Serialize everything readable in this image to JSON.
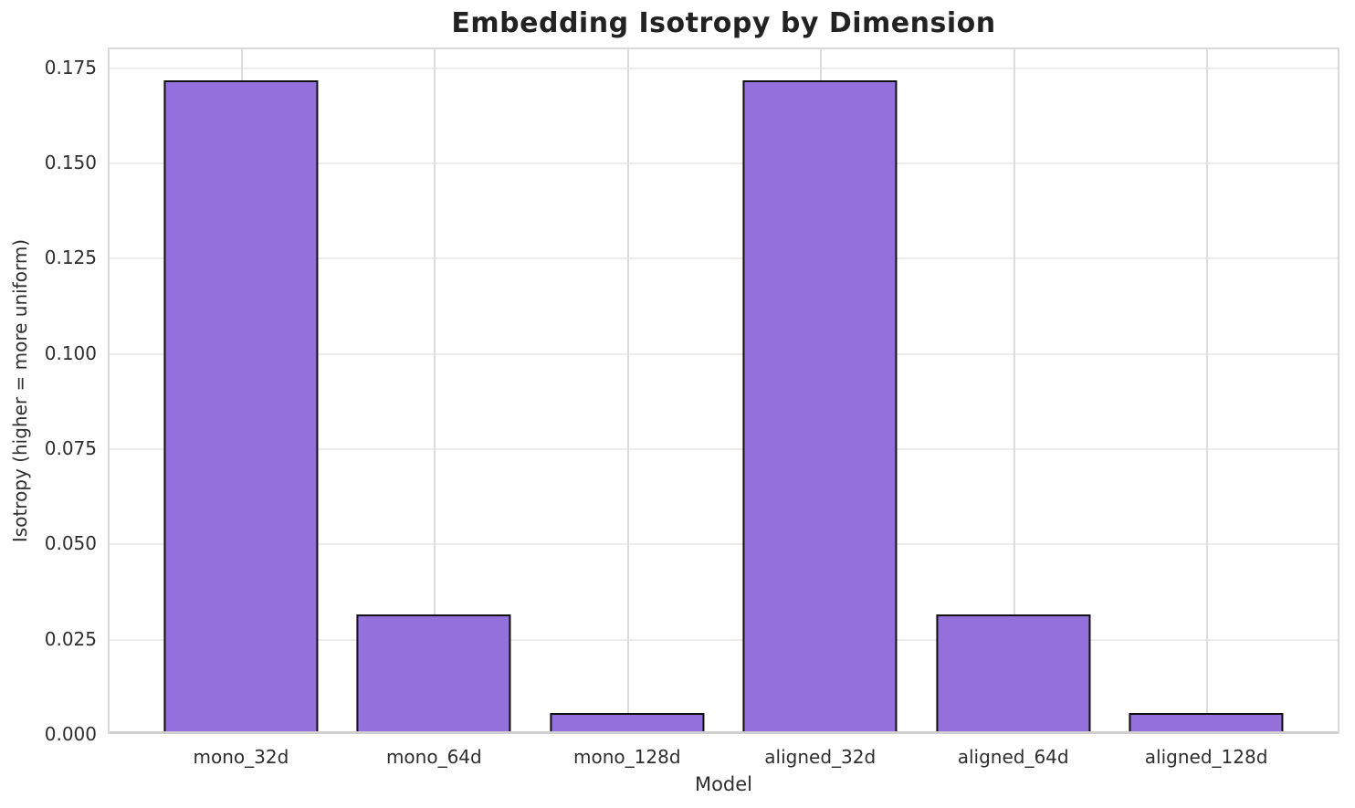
{
  "chart_data": {
    "type": "bar",
    "title": "Embedding Isotropy by Dimension",
    "xlabel": "Model",
    "ylabel": "Isotropy (higher = more uniform)",
    "categories": [
      "mono_32d",
      "mono_64d",
      "mono_128d",
      "aligned_32d",
      "aligned_64d",
      "aligned_128d"
    ],
    "values": [
      0.1716,
      0.0313,
      0.0054,
      0.1716,
      0.0313,
      0.0054
    ],
    "ytick_values": [
      0.0,
      0.025,
      0.05,
      0.075,
      0.1,
      0.125,
      0.15,
      0.175
    ],
    "ytick_labels": [
      "0.000",
      "0.025",
      "0.050",
      "0.075",
      "0.100",
      "0.125",
      "0.150",
      "0.175"
    ],
    "ylim": [
      0,
      0.1802
    ],
    "x_range": [
      -0.69,
      5.69
    ],
    "bar_width_units": 0.8,
    "grid": "horizontal and vertical, light gray",
    "legend": "none",
    "bar_color": "#9370DB",
    "bar_edge_color": "#111111",
    "background_color": "#ffffff"
  }
}
